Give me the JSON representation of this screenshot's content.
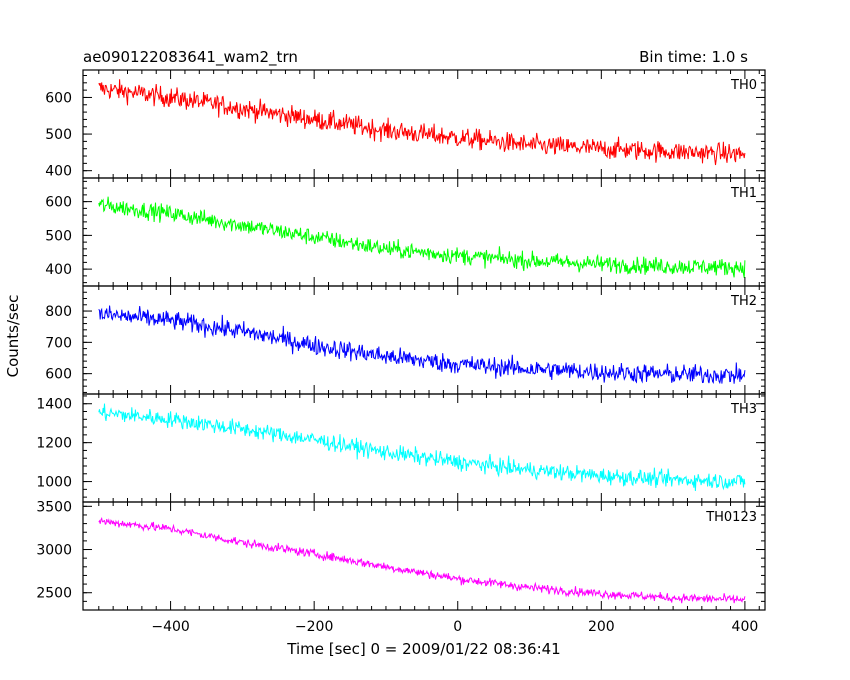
{
  "header": {
    "title": "ae090122083641_wam2_trn",
    "bin_time": "Bin time: 1.0 s"
  },
  "chart_data": {
    "type": "line",
    "title": "ae090122083641_wam2_trn",
    "subtitle": "Bin time: 1.0 s",
    "xlabel": "Time [sec] 0 = 2009/01/22 08:36:41",
    "ylabel": "Counts/sec",
    "xlim": [
      -522,
      428
    ],
    "x_ticks": [
      -400,
      -200,
      0,
      200,
      400
    ],
    "x_tick_labels": [
      "−400",
      "−200",
      "0",
      "200",
      "400"
    ],
    "x_range": [
      -500,
      400
    ],
    "bin_seconds": 1.0,
    "grid": false,
    "panels": [
      {
        "name": "TH0",
        "color": "#ff0000",
        "ylim": [
          380,
          675
        ],
        "y_ticks": [
          400,
          500,
          600
        ],
        "y_tick_labels": [
          "400",
          "500",
          "600"
        ],
        "trend_x": [
          -500,
          -400,
          -300,
          -200,
          -100,
          0,
          100,
          200,
          300,
          400
        ],
        "trend_y": [
          625,
          600,
          570,
          540,
          510,
          490,
          470,
          460,
          452,
          445
        ],
        "noise_amplitude": 50
      },
      {
        "name": "TH1",
        "color": "#00ff00",
        "ylim": [
          350,
          670
        ],
        "y_ticks": [
          400,
          500,
          600
        ],
        "y_tick_labels": [
          "400",
          "500",
          "600"
        ],
        "trend_x": [
          -500,
          -400,
          -300,
          -200,
          -100,
          0,
          100,
          200,
          300,
          400
        ],
        "trend_y": [
          590,
          565,
          530,
          495,
          460,
          440,
          425,
          415,
          408,
          405
        ],
        "noise_amplitude": 45
      },
      {
        "name": "TH2",
        "color": "#0000ff",
        "ylim": [
          535,
          880
        ],
        "y_ticks": [
          600,
          700,
          800
        ],
        "y_tick_labels": [
          "600",
          "700",
          "800"
        ],
        "trend_x": [
          -500,
          -400,
          -300,
          -200,
          -100,
          0,
          100,
          200,
          300,
          400
        ],
        "trend_y": [
          790,
          770,
          735,
          690,
          655,
          630,
          615,
          605,
          598,
          595
        ],
        "noise_amplitude": 55
      },
      {
        "name": "TH3",
        "color": "#00ffff",
        "ylim": [
          895,
          1450
        ],
        "y_ticks": [
          1000,
          1200,
          1400
        ],
        "y_tick_labels": [
          "1000",
          "1200",
          "1400"
        ],
        "trend_x": [
          -500,
          -400,
          -300,
          -200,
          -100,
          0,
          100,
          200,
          300,
          400
        ],
        "trend_y": [
          1355,
          1320,
          1270,
          1215,
          1150,
          1100,
          1060,
          1030,
          1010,
          1000
        ],
        "noise_amplitude": 75
      },
      {
        "name": "TH0123",
        "color": "#ff00ff",
        "ylim": [
          2300,
          3550
        ],
        "y_ticks": [
          2500,
          3000,
          3500
        ],
        "y_tick_labels": [
          "2500",
          "3000",
          "3500"
        ],
        "trend_x": [
          -500,
          -400,
          -300,
          -200,
          -100,
          0,
          100,
          200,
          300,
          400
        ],
        "trend_y": [
          3330,
          3240,
          3080,
          2950,
          2800,
          2660,
          2560,
          2490,
          2440,
          2420
        ],
        "noise_amplitude": 90
      }
    ]
  }
}
